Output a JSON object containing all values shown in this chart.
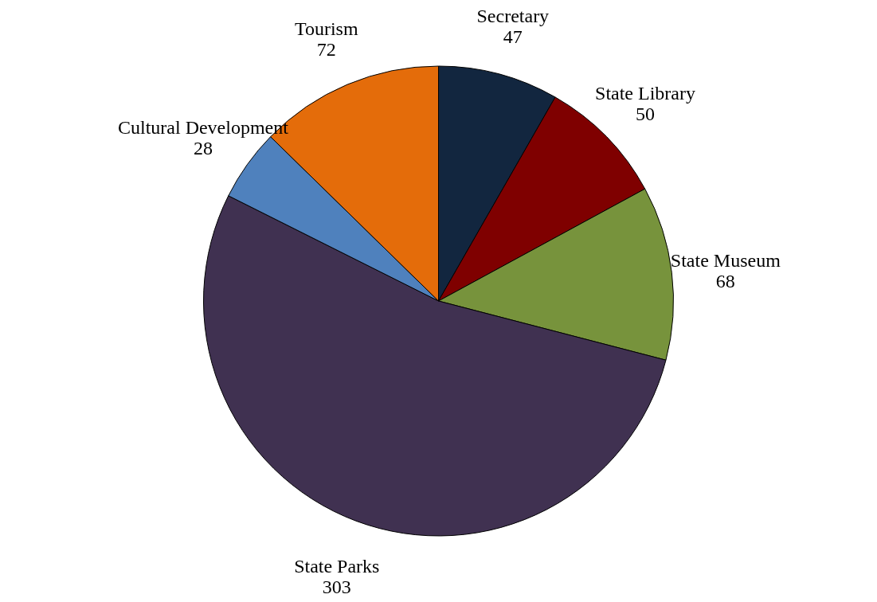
{
  "chart_data": {
    "type": "pie",
    "categories": [
      "Secretary",
      "State Library",
      "State Museum",
      "State Parks",
      "Cultural Development",
      "Tourism"
    ],
    "values": [
      47,
      50,
      68,
      303,
      28,
      72
    ],
    "colors": [
      "#12263f",
      "#7f0000",
      "#77933c",
      "#403151",
      "#4f81bd",
      "#e46c0a"
    ],
    "data_labels": true
  }
}
